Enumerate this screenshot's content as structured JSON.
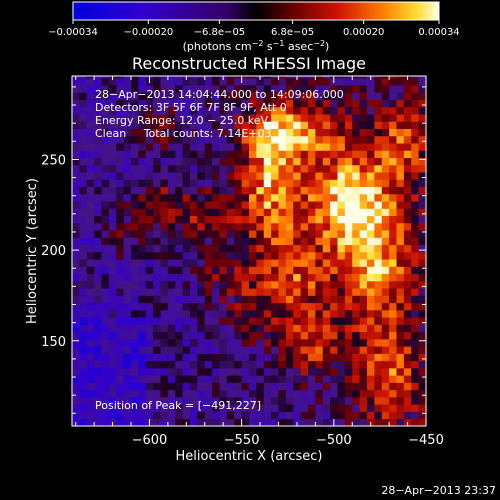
{
  "chart_data": {
    "type": "heatmap",
    "title": "Reconstructed RHESSI Image",
    "xlabel": "Heliocentric X (arcsec)",
    "ylabel": "Heliocentric Y (arcsec)",
    "xlim": [
      -642,
      -450
    ],
    "ylim": [
      103,
      296
    ],
    "xticks": [
      -600,
      -550,
      -500,
      -450
    ],
    "yticks": [
      150,
      200,
      250
    ],
    "xtick_labels": [
      "−600",
      "−550",
      "−500",
      "−450"
    ],
    "ytick_labels": [
      "150",
      "200",
      "250"
    ],
    "colorbar": {
      "range": [
        -0.00034,
        0.00034
      ],
      "ticks": [
        -0.00034,
        -0.0002,
        -6.8e-05,
        6.8e-05,
        0.0002,
        0.00034
      ],
      "tick_labels": [
        "−0.00034",
        "−0.00020",
        "−6.8e−05",
        "6.8e−05",
        "0.00020",
        "0.00034"
      ],
      "units_prefix": "(photons cm",
      "units_exp1": "−2",
      "units_mid": " s",
      "units_exp2": "−1",
      "units_mid2": " asec",
      "units_exp3": "−2",
      "units_suffix": ")"
    },
    "annotations": [
      "28−Apr−2013 14:04:44.000 to 14:09:06.000",
      "Detectors: 3F 5F 6F 7F 8F 9F, Att 0",
      "Energy Range: 12.0 − 25.0 keV",
      "Clean     Total counts: 7.14E+03"
    ],
    "peak_label": "Position of Peak = [−491,227]",
    "peak": [
      -491,
      227
    ],
    "grid": false,
    "sources": [
      {
        "x": -491,
        "y": 228,
        "amp": 1.0,
        "sx": 17,
        "sy": 20
      },
      {
        "x": -535,
        "y": 237,
        "amp": 0.85,
        "sx": 12,
        "sy": 28
      },
      {
        "x": -520,
        "y": 266,
        "amp": 0.75,
        "sx": 18,
        "sy": 10
      },
      {
        "x": -478,
        "y": 188,
        "amp": 0.75,
        "sx": 14,
        "sy": 24
      },
      {
        "x": -520,
        "y": 185,
        "amp": 0.55,
        "sx": 12,
        "sy": 15
      },
      {
        "x": -512,
        "y": 150,
        "amp": 0.55,
        "sx": 12,
        "sy": 13
      },
      {
        "x": -470,
        "y": 130,
        "amp": 0.6,
        "sx": 12,
        "sy": 18
      },
      {
        "x": -462,
        "y": 260,
        "amp": 0.55,
        "sx": 10,
        "sy": 15
      },
      {
        "x": -572,
        "y": 220,
        "amp": 0.45,
        "sx": 13,
        "sy": 10
      },
      {
        "x": -598,
        "y": 228,
        "amp": 0.4,
        "sx": 11,
        "sy": 7
      },
      {
        "x": -595,
        "y": 267,
        "amp": 0.35,
        "sx": 9,
        "sy": 9
      },
      {
        "x": -610,
        "y": 207,
        "amp": 0.3,
        "sx": 11,
        "sy": 8
      },
      {
        "x": -560,
        "y": 190,
        "amp": 0.3,
        "sx": 12,
        "sy": 10
      },
      {
        "x": -545,
        "y": 168,
        "amp": 0.35,
        "sx": 10,
        "sy": 12
      }
    ],
    "timestamp": "28−Apr−2013 23:37"
  }
}
